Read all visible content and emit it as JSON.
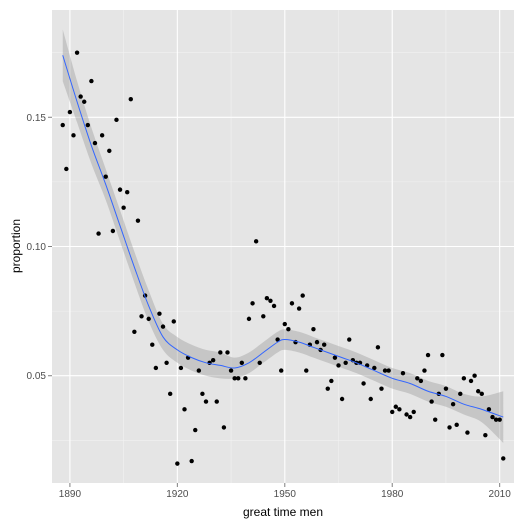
{
  "chart_data": {
    "type": "scatter",
    "title": "",
    "xlabel": "great time men",
    "ylabel": "proportion",
    "xlim": [
      1885,
      2014
    ],
    "ylim": [
      0.0085,
      0.1915
    ],
    "x_ticks": [
      1890,
      1920,
      1950,
      1980,
      2010
    ],
    "x_tick_labels": [
      "1890",
      "1920",
      "1950",
      "1980",
      "2010"
    ],
    "y_ticks": [
      0.05,
      0.1,
      0.15
    ],
    "y_tick_labels": [
      "0.05",
      "0.10",
      "0.15"
    ],
    "grid": true,
    "colors": {
      "panel": "#e5e5e5",
      "grid_major": "#ffffff",
      "grid_minor": "#f2f2f2",
      "points": "#000000",
      "smooth_line": "#3366ff",
      "confidence_band": "#999999"
    },
    "series": [
      {
        "type": "points",
        "x": [
          1888,
          1889,
          1890,
          1891,
          1892,
          1893,
          1894,
          1895,
          1896,
          1897,
          1898,
          1899,
          1900,
          1901,
          1902,
          1903,
          1904,
          1905,
          1906,
          1907,
          1908,
          1909,
          1910,
          1911,
          1912,
          1913,
          1914,
          1915,
          1916,
          1917,
          1918,
          1919,
          1920,
          1921,
          1922,
          1923,
          1924,
          1925,
          1926,
          1927,
          1928,
          1929,
          1930,
          1931,
          1932,
          1933,
          1934,
          1935,
          1936,
          1937,
          1938,
          1939,
          1940,
          1941,
          1942,
          1943,
          1944,
          1945,
          1946,
          1947,
          1948,
          1949,
          1950,
          1951,
          1952,
          1953,
          1954,
          1955,
          1956,
          1957,
          1958,
          1959,
          1960,
          1961,
          1962,
          1963,
          1964,
          1965,
          1966,
          1967,
          1968,
          1969,
          1970,
          1971,
          1972,
          1973,
          1974,
          1975,
          1976,
          1977,
          1978,
          1979,
          1980,
          1981,
          1982,
          1983,
          1984,
          1985,
          1986,
          1987,
          1988,
          1989,
          1990,
          1991,
          1992,
          1993,
          1994,
          1995,
          1996,
          1997,
          1998,
          1999,
          2000,
          2001,
          2002,
          2003,
          2004,
          2005,
          2006,
          2007,
          2008,
          2009,
          2010,
          2011
        ],
        "y": [
          0.147,
          0.13,
          0.152,
          0.143,
          0.175,
          0.158,
          0.156,
          0.147,
          0.164,
          0.14,
          0.105,
          0.143,
          0.127,
          0.137,
          0.106,
          0.149,
          0.122,
          0.115,
          0.121,
          0.157,
          0.067,
          0.11,
          0.073,
          0.081,
          0.072,
          0.062,
          0.053,
          0.074,
          0.069,
          0.055,
          0.043,
          0.071,
          0.016,
          0.053,
          0.037,
          0.057,
          0.017,
          0.029,
          0.052,
          0.043,
          0.04,
          0.055,
          0.056,
          0.04,
          0.059,
          0.03,
          0.059,
          0.052,
          0.049,
          0.049,
          0.055,
          0.049,
          0.072,
          0.078,
          0.102,
          0.055,
          0.073,
          0.08,
          0.079,
          0.077,
          0.064,
          0.052,
          0.07,
          0.068,
          0.078,
          0.063,
          0.076,
          0.081,
          0.052,
          0.062,
          0.068,
          0.063,
          0.06,
          0.062,
          0.045,
          0.048,
          0.057,
          0.054,
          0.041,
          0.055,
          0.064,
          0.056,
          0.055,
          0.055,
          0.047,
          0.054,
          0.041,
          0.053,
          0.061,
          0.045,
          0.052,
          0.052,
          0.036,
          0.038,
          0.037,
          0.051,
          0.035,
          0.034,
          0.036,
          0.049,
          0.048,
          0.052,
          0.058,
          0.04,
          0.033,
          0.043,
          0.058,
          0.045,
          0.03,
          0.039,
          0.031,
          0.043,
          0.049,
          0.028,
          0.048,
          0.05,
          0.044,
          0.043,
          0.027,
          0.037,
          0.034,
          0.033,
          0.033,
          0.018
        ]
      },
      {
        "type": "smooth",
        "x": [
          1888,
          1892,
          1896,
          1900,
          1904,
          1908,
          1912,
          1916,
          1920,
          1924,
          1928,
          1932,
          1936,
          1940,
          1944,
          1948,
          1950,
          1954,
          1958,
          1962,
          1966,
          1970,
          1975,
          1980,
          1985,
          1990,
          1995,
          2000,
          2005,
          2011
        ],
        "y": [
          0.174,
          0.156,
          0.139,
          0.124,
          0.108,
          0.092,
          0.077,
          0.065,
          0.06,
          0.057,
          0.055,
          0.054,
          0.053,
          0.055,
          0.059,
          0.063,
          0.064,
          0.063,
          0.061,
          0.059,
          0.057,
          0.055,
          0.052,
          0.049,
          0.047,
          0.044,
          0.042,
          0.039,
          0.037,
          0.034
        ],
        "se": [
          0.01,
          0.008,
          0.007,
          0.006,
          0.006,
          0.006,
          0.006,
          0.005,
          0.005,
          0.005,
          0.005,
          0.005,
          0.004,
          0.004,
          0.004,
          0.004,
          0.004,
          0.004,
          0.004,
          0.004,
          0.004,
          0.004,
          0.004,
          0.004,
          0.004,
          0.004,
          0.004,
          0.004,
          0.005,
          0.01
        ]
      }
    ]
  }
}
